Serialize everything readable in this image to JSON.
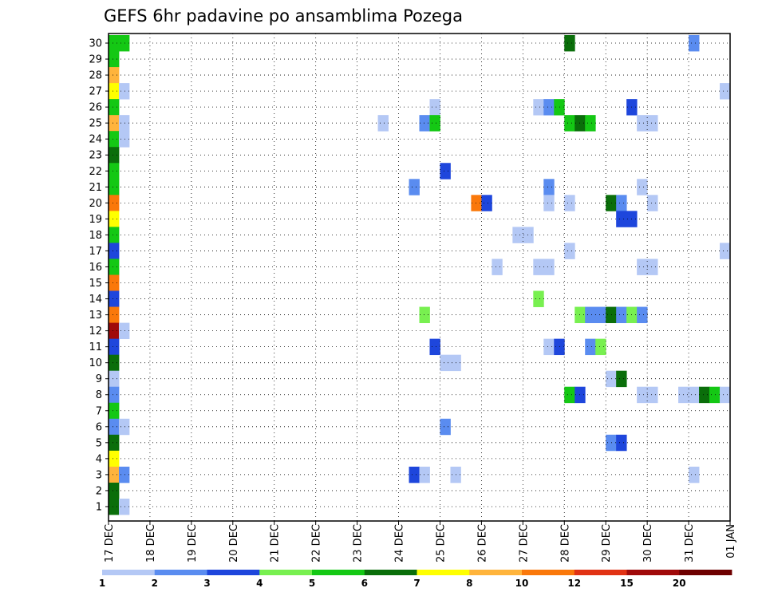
{
  "chart_data": {
    "type": "heatmap",
    "title": "GEFS 6hr padavine po ansamblima Pozega",
    "xlabel": "",
    "ylabel": "",
    "x_ticks": [
      "17 DEC",
      "18 DEC",
      "19 DEC",
      "20 DEC",
      "21 DEC",
      "22 DEC",
      "23 DEC",
      "24 DEC",
      "25 DEC",
      "26 DEC",
      "27 DEC",
      "28 DEC",
      "29 DEC",
      "30 DEC",
      "31 DEC",
      "01 JAN"
    ],
    "y_ticks": [
      "1",
      "2",
      "3",
      "4",
      "5",
      "6",
      "7",
      "8",
      "9",
      "10",
      "11",
      "12",
      "13",
      "14",
      "15",
      "16",
      "17",
      "18",
      "19",
      "20",
      "21",
      "22",
      "23",
      "24",
      "25",
      "26",
      "27",
      "28",
      "29",
      "30"
    ],
    "grid": true,
    "colorbar": {
      "labels": [
        "1",
        "2",
        "3",
        "4",
        "5",
        "6",
        "7",
        "8",
        "10",
        "12",
        "15",
        "20"
      ],
      "colors": [
        "#b4c8f5",
        "#5a8cf0",
        "#1e46dc",
        "#78f050",
        "#14c814",
        "#0a6e0a",
        "#ffff00",
        "#ffb43c",
        "#fa780a",
        "#e13214",
        "#a00a0a",
        "#6e0000"
      ]
    },
    "x_range_days": [
      0,
      15
    ],
    "steps_per_day": 4,
    "colorbar_levels": [
      1,
      2,
      3,
      4,
      5,
      6,
      7,
      8,
      10,
      12,
      15,
      20
    ],
    "cells_format": "[member, start step (6 h from 17 DEC 00Z), number of steps, colour class (0 = 1-2 ... 11 = 20+)]",
    "cells": [
      [
        30,
        0,
        1,
        4
      ],
      [
        30,
        1,
        1,
        4
      ],
      [
        30,
        44,
        1,
        5
      ],
      [
        30,
        56,
        1,
        1
      ],
      [
        29,
        0,
        1,
        4
      ],
      [
        28,
        0,
        1,
        7
      ],
      [
        27,
        0,
        1,
        6
      ],
      [
        27,
        1,
        1,
        0
      ],
      [
        27,
        59,
        1,
        0
      ],
      [
        26,
        0,
        1,
        4
      ],
      [
        26,
        31,
        1,
        0
      ],
      [
        26,
        41,
        1,
        0
      ],
      [
        26,
        42,
        1,
        1
      ],
      [
        26,
        43,
        1,
        4
      ],
      [
        26,
        50,
        1,
        2
      ],
      [
        25,
        0,
        1,
        7
      ],
      [
        25,
        1,
        1,
        0
      ],
      [
        25,
        26,
        1,
        0
      ],
      [
        25,
        30,
        1,
        1
      ],
      [
        25,
        31,
        1,
        4
      ],
      [
        25,
        44,
        1,
        4
      ],
      [
        25,
        45,
        1,
        5
      ],
      [
        25,
        46,
        1,
        4
      ],
      [
        25,
        51,
        2,
        0
      ],
      [
        24,
        0,
        1,
        4
      ],
      [
        24,
        1,
        1,
        0
      ],
      [
        23,
        0,
        1,
        5
      ],
      [
        22,
        0,
        1,
        4
      ],
      [
        22,
        32,
        1,
        2
      ],
      [
        21,
        0,
        1,
        4
      ],
      [
        21,
        29,
        1,
        1
      ],
      [
        21,
        42,
        1,
        1
      ],
      [
        21,
        51,
        1,
        0
      ],
      [
        20,
        0,
        1,
        8
      ],
      [
        20,
        35,
        1,
        8
      ],
      [
        20,
        36,
        1,
        2
      ],
      [
        20,
        42,
        1,
        0
      ],
      [
        20,
        44,
        1,
        0
      ],
      [
        20,
        48,
        1,
        5
      ],
      [
        20,
        49,
        1,
        1
      ],
      [
        20,
        52,
        1,
        0
      ],
      [
        19,
        0,
        1,
        6
      ],
      [
        19,
        49,
        2,
        2
      ],
      [
        18,
        0,
        1,
        4
      ],
      [
        18,
        39,
        2,
        0
      ],
      [
        17,
        0,
        1,
        2
      ],
      [
        17,
        44,
        1,
        0
      ],
      [
        17,
        59,
        1,
        0
      ],
      [
        16,
        0,
        1,
        4
      ],
      [
        16,
        37,
        1,
        0
      ],
      [
        16,
        41,
        2,
        0
      ],
      [
        16,
        51,
        2,
        0
      ],
      [
        15,
        0,
        1,
        8
      ],
      [
        14,
        0,
        1,
        2
      ],
      [
        14,
        41,
        1,
        3
      ],
      [
        13,
        0,
        1,
        8
      ],
      [
        13,
        30,
        1,
        3
      ],
      [
        13,
        45,
        1,
        3
      ],
      [
        13,
        46,
        2,
        1
      ],
      [
        13,
        48,
        1,
        5
      ],
      [
        13,
        49,
        1,
        1
      ],
      [
        13,
        50,
        1,
        3
      ],
      [
        13,
        51,
        1,
        1
      ],
      [
        12,
        0,
        1,
        10
      ],
      [
        12,
        1,
        1,
        0
      ],
      [
        11,
        0,
        1,
        2
      ],
      [
        11,
        31,
        1,
        2
      ],
      [
        11,
        42,
        1,
        0
      ],
      [
        11,
        43,
        1,
        2
      ],
      [
        11,
        46,
        1,
        1
      ],
      [
        11,
        47,
        1,
        3
      ],
      [
        10,
        0,
        1,
        5
      ],
      [
        10,
        32,
        2,
        0
      ],
      [
        9,
        0,
        1,
        0
      ],
      [
        9,
        48,
        1,
        0
      ],
      [
        9,
        49,
        1,
        5
      ],
      [
        8,
        0,
        1,
        1
      ],
      [
        8,
        44,
        1,
        4
      ],
      [
        8,
        45,
        1,
        2
      ],
      [
        8,
        51,
        2,
        0
      ],
      [
        8,
        55,
        2,
        0
      ],
      [
        8,
        57,
        1,
        5
      ],
      [
        8,
        58,
        1,
        4
      ],
      [
        8,
        59,
        1,
        0
      ],
      [
        7,
        0,
        1,
        4
      ],
      [
        6,
        0,
        1,
        1
      ],
      [
        6,
        1,
        1,
        0
      ],
      [
        6,
        32,
        1,
        1
      ],
      [
        5,
        0,
        1,
        5
      ],
      [
        5,
        48,
        1,
        1
      ],
      [
        5,
        49,
        1,
        2
      ],
      [
        4,
        0,
        1,
        6
      ],
      [
        3,
        0,
        1,
        7
      ],
      [
        3,
        1,
        1,
        1
      ],
      [
        3,
        29,
        1,
        2
      ],
      [
        3,
        30,
        1,
        0
      ],
      [
        3,
        33,
        1,
        0
      ],
      [
        3,
        56,
        1,
        0
      ],
      [
        2,
        0,
        1,
        5
      ],
      [
        1,
        0,
        1,
        5
      ],
      [
        1,
        1,
        1,
        0
      ]
    ]
  }
}
